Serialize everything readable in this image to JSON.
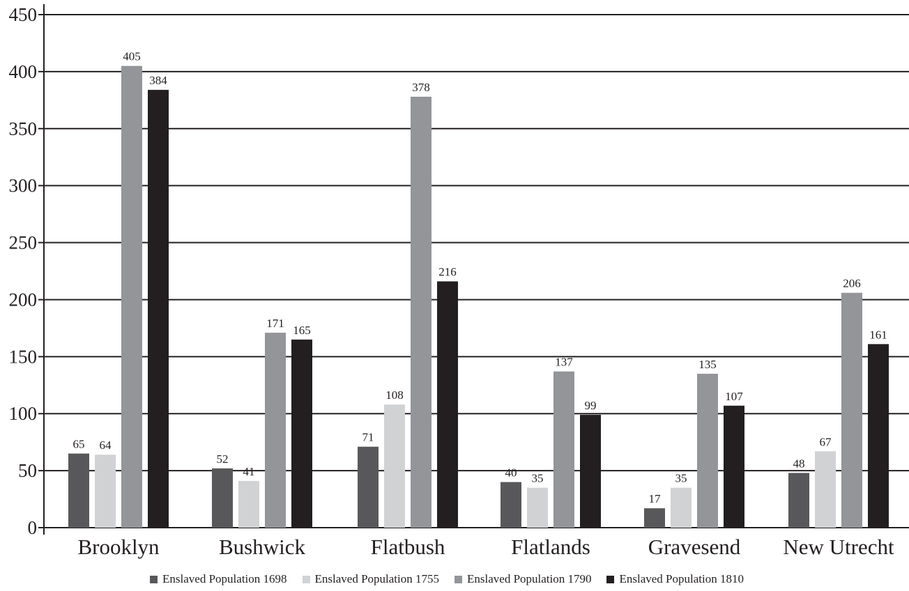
{
  "chart_data": {
    "type": "bar",
    "title": "",
    "xlabel": "",
    "ylabel": "",
    "ylim": [
      0,
      450
    ],
    "yticks": [
      0,
      50,
      100,
      150,
      200,
      250,
      300,
      350,
      400,
      450
    ],
    "grid": true,
    "legend_position": "bottom",
    "categories": [
      "Brooklyn",
      "Bushwick",
      "Flatbush",
      "Flatlands",
      "Gravesend",
      "New Utrecht"
    ],
    "series": [
      {
        "name": "Enslaved Population 1698",
        "color": "#58585a",
        "values": [
          65,
          52,
          71,
          40,
          17,
          48
        ]
      },
      {
        "name": "Enslaved Population 1755",
        "color": "#d1d2d4",
        "values": [
          64,
          41,
          108,
          35,
          35,
          67
        ]
      },
      {
        "name": "Enslaved Population 1790",
        "color": "#939598",
        "values": [
          405,
          171,
          378,
          137,
          135,
          206
        ]
      },
      {
        "name": "Enslaved Population 1810",
        "color": "#231f20",
        "values": [
          384,
          165,
          216,
          99,
          107,
          161
        ]
      }
    ],
    "data_labels": true
  },
  "colors": {
    "axis": "#231f20",
    "grid": "#231f20",
    "text": "#231f20"
  }
}
